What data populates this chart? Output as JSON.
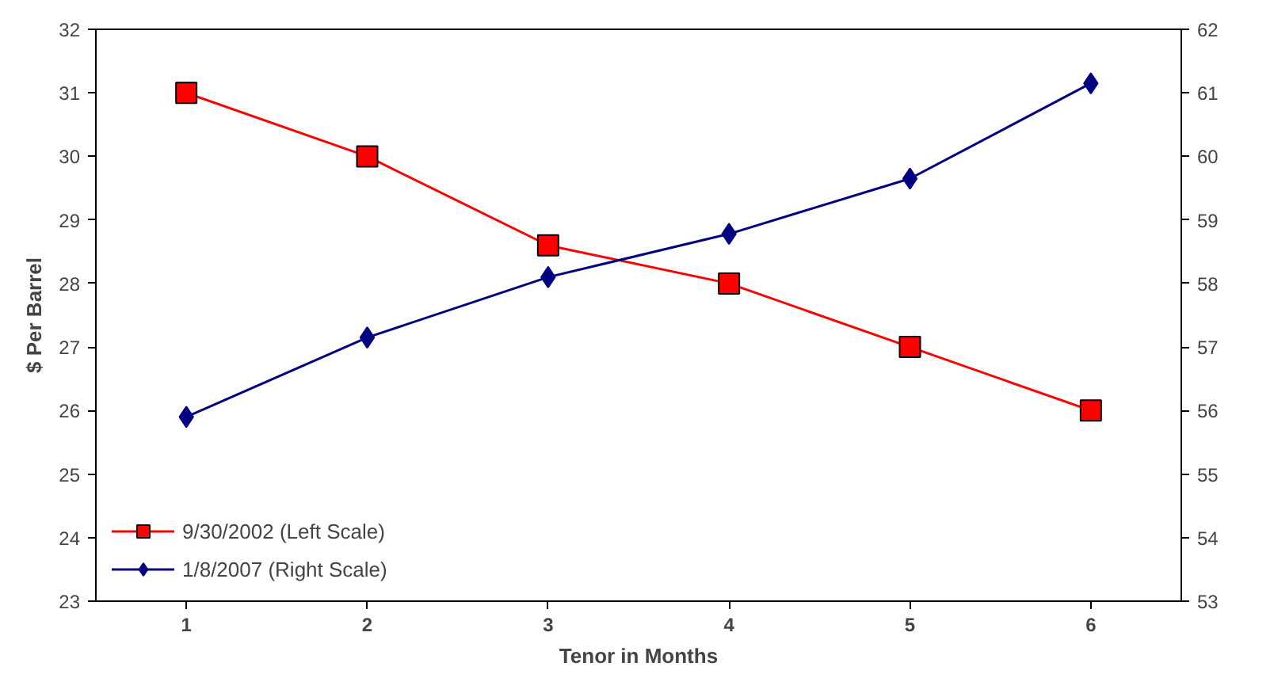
{
  "chart_data": {
    "type": "line",
    "xlabel": "Tenor in Months",
    "ylabel": "$ Per Barrel",
    "categories": [
      "1",
      "2",
      "3",
      "4",
      "5",
      "6"
    ],
    "ylim": [
      23,
      32
    ],
    "yticks": [
      23,
      24,
      25,
      26,
      27,
      28,
      29,
      30,
      31,
      32
    ],
    "y2lim": [
      53,
      62
    ],
    "y2ticks": [
      53,
      54,
      55,
      56,
      57,
      58,
      59,
      60,
      61,
      62
    ],
    "legend": "bottom left",
    "grid": false,
    "series": [
      {
        "name": "9/30/2002 (Left Scale)",
        "color": "#ff0000",
        "marker": "square",
        "values": [
          31,
          30,
          28.6,
          28,
          27,
          26
        ]
      },
      {
        "name": "1/8/2007 (Right Scale)",
        "color": "#000080",
        "marker": "diamond",
        "axis": "y2",
        "values": [
          55.9,
          57.15,
          58.1,
          58.78,
          59.65,
          61.15
        ]
      }
    ]
  }
}
